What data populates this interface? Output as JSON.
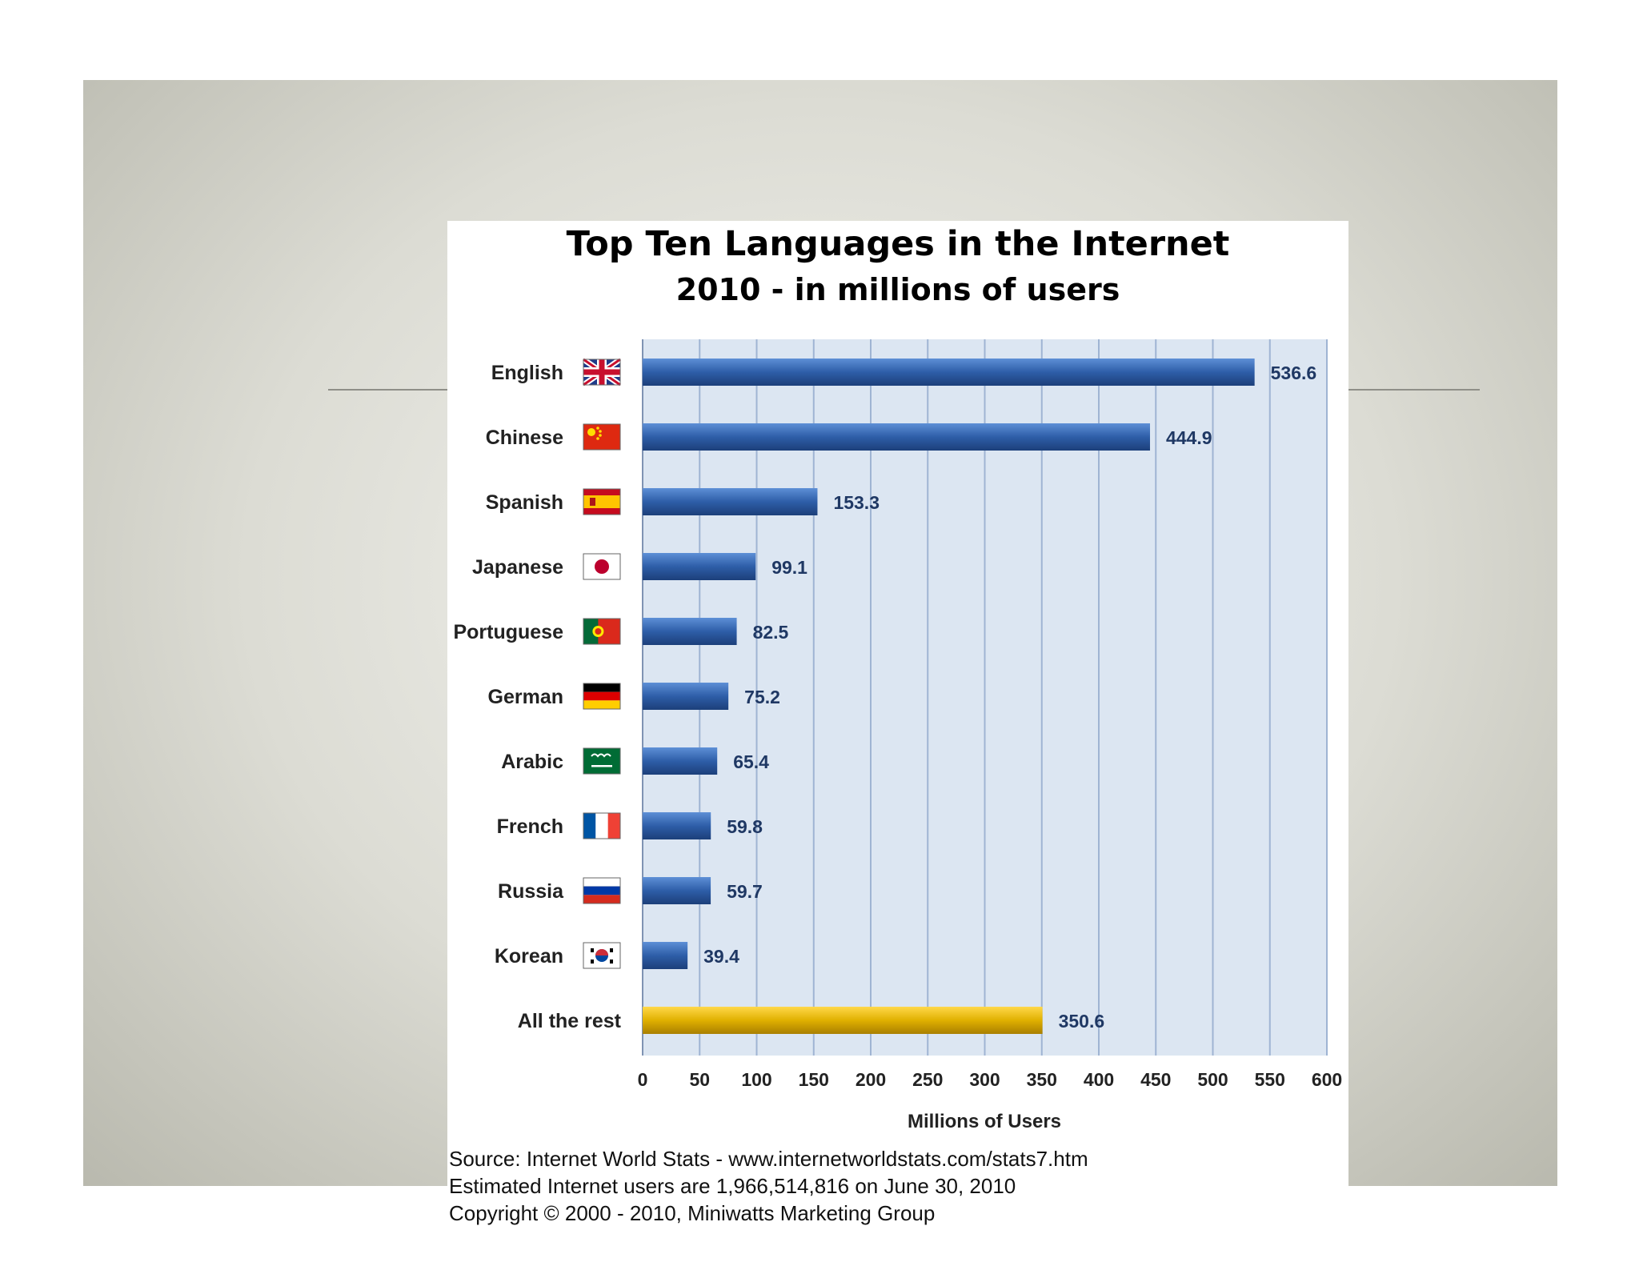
{
  "chart_data": {
    "type": "bar",
    "orientation": "horizontal",
    "title": "Top Ten Languages in the Internet",
    "subtitle": "2010 - in millions of users",
    "xlabel": "Millions of Users",
    "ylabel": "",
    "xlim": [
      0,
      600
    ],
    "xticks": [
      0,
      50,
      100,
      150,
      200,
      250,
      300,
      350,
      400,
      450,
      500,
      550,
      600
    ],
    "grid": true,
    "categories": [
      "English",
      "Chinese",
      "Spanish",
      "Japanese",
      "Portuguese",
      "German",
      "Arabic",
      "French",
      "Russia",
      "Korean",
      "All the rest"
    ],
    "values": [
      536.6,
      444.9,
      153.3,
      99.1,
      82.5,
      75.2,
      65.4,
      59.8,
      59.7,
      39.4,
      350.6
    ],
    "value_labels": [
      "536.6",
      "444.9",
      "153.3",
      "99.1",
      "82.5",
      "75.2",
      "65.4",
      "59.8",
      "59.7",
      "39.4",
      "350.6"
    ],
    "flag_icons": [
      "uk-flag-icon",
      "china-flag-icon",
      "spain-flag-icon",
      "japan-flag-icon",
      "portugal-flag-icon",
      "germany-flag-icon",
      "saudi-arabia-flag-icon",
      "france-flag-icon",
      "russia-flag-icon",
      "south-korea-flag-icon",
      ""
    ],
    "colors": {
      "bar": "#2e5ea8",
      "highlight_bar": "#e0b000",
      "plot_background": "#dce6f2",
      "gridline": "#9fb4d3"
    }
  },
  "footnotes": {
    "source": "Source: Internet World Stats - www.internetworldstats.com/stats7.htm",
    "estimate": "Estimated Internet users are 1,966,514,816 on June 30, 2010",
    "copyright": "Copyright © 2000 - 2010, Miniwatts Marketing Group"
  }
}
